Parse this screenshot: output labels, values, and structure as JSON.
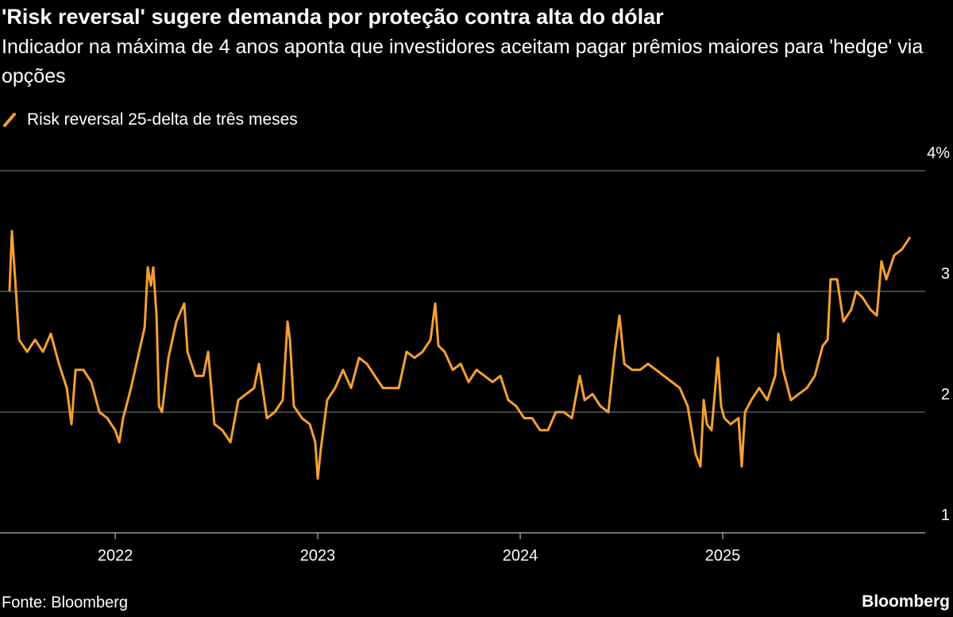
{
  "chart_data": {
    "type": "line",
    "title": "'Risk reversal' sugere demanda por proteção contra alta do dólar",
    "subtitle": "Indicador na máxima de 4 anos aponta que investidores aceitam pagar prêmios maiores para 'hedge' via opções",
    "source": "Fonte: Bloomberg",
    "brand": "Bloomberg",
    "xlim": [
      2021.431,
      2026.0
    ],
    "xticks": [
      2022,
      2023,
      2024,
      2025
    ],
    "ylim": [
      1,
      4
    ],
    "yticks": [
      1,
      2,
      3,
      {
        "value": 4,
        "label": "4%"
      }
    ],
    "grid": true,
    "x": [
      2021.478,
      2021.49,
      2021.506,
      2021.525,
      2021.565,
      2021.604,
      2021.643,
      2021.682,
      2021.722,
      2021.761,
      2021.784,
      2021.804,
      2021.843,
      2021.882,
      2021.922,
      2021.961,
      2022.0,
      2022.02,
      2022.039,
      2022.078,
      2022.118,
      2022.145,
      2022.161,
      2022.176,
      2022.188,
      2022.204,
      2022.216,
      2022.231,
      2022.263,
      2022.302,
      2022.341,
      2022.357,
      2022.396,
      2022.435,
      2022.459,
      2022.49,
      2022.529,
      2022.569,
      2022.608,
      2022.647,
      2022.686,
      2022.71,
      2022.749,
      2022.788,
      2022.827,
      2022.851,
      2022.863,
      2022.882,
      2022.922,
      2022.961,
      2022.988,
      2023.0,
      2023.016,
      2023.047,
      2023.086,
      2023.125,
      2023.165,
      2023.204,
      2023.243,
      2023.282,
      2023.322,
      2023.361,
      2023.4,
      2023.439,
      2023.478,
      2023.518,
      2023.557,
      2023.58,
      2023.596,
      2023.627,
      2023.667,
      2023.706,
      2023.745,
      2023.784,
      2023.824,
      2023.863,
      2023.902,
      2023.941,
      2023.98,
      2024.02,
      2024.059,
      2024.098,
      2024.137,
      2024.176,
      2024.216,
      2024.255,
      2024.294,
      2024.318,
      2024.357,
      2024.396,
      2024.435,
      2024.467,
      2024.49,
      2024.514,
      2024.553,
      2024.592,
      2024.631,
      2024.671,
      2024.71,
      2024.749,
      2024.788,
      2024.827,
      2024.867,
      2024.89,
      2024.906,
      2024.922,
      2024.945,
      2024.976,
      2024.992,
      2025.008,
      2025.039,
      2025.078,
      2025.094,
      2025.11,
      2025.141,
      2025.18,
      2025.22,
      2025.259,
      2025.275,
      2025.298,
      2025.337,
      2025.376,
      2025.416,
      2025.455,
      2025.494,
      2025.518,
      2025.533,
      2025.565,
      2025.596,
      2025.635,
      2025.659,
      2025.69,
      2025.729,
      2025.761,
      2025.784,
      2025.808,
      2025.847,
      2025.886,
      2025.925
    ],
    "series": [
      {
        "name": "Risk reversal 25-delta de três meses",
        "color": "#f5a033",
        "values": [
          3.0,
          3.5,
          3.1,
          2.6,
          2.5,
          2.6,
          2.5,
          2.65,
          2.4,
          2.2,
          1.9,
          2.35,
          2.35,
          2.25,
          2.0,
          1.95,
          1.85,
          1.75,
          1.95,
          2.2,
          2.5,
          2.7,
          3.2,
          3.05,
          3.2,
          2.8,
          2.05,
          2.0,
          2.45,
          2.75,
          2.9,
          2.5,
          2.3,
          2.3,
          2.5,
          1.9,
          1.85,
          1.75,
          2.1,
          2.15,
          2.2,
          2.4,
          1.95,
          2.0,
          2.1,
          2.75,
          2.6,
          2.05,
          1.95,
          1.9,
          1.75,
          1.45,
          1.7,
          2.1,
          2.2,
          2.35,
          2.2,
          2.45,
          2.4,
          2.3,
          2.2,
          2.2,
          2.2,
          2.5,
          2.45,
          2.5,
          2.6,
          2.9,
          2.55,
          2.5,
          2.35,
          2.4,
          2.25,
          2.35,
          2.3,
          2.25,
          2.3,
          2.1,
          2.05,
          1.95,
          1.95,
          1.85,
          1.85,
          2.0,
          2.0,
          1.95,
          2.3,
          2.1,
          2.15,
          2.05,
          2.0,
          2.5,
          2.8,
          2.4,
          2.35,
          2.35,
          2.4,
          2.35,
          2.3,
          2.25,
          2.2,
          2.05,
          1.65,
          1.55,
          2.1,
          1.9,
          1.85,
          2.45,
          2.05,
          1.95,
          1.9,
          1.95,
          1.55,
          2.0,
          2.1,
          2.2,
          2.1,
          2.3,
          2.65,
          2.35,
          2.1,
          2.15,
          2.2,
          2.3,
          2.55,
          2.6,
          3.1,
          3.1,
          2.75,
          2.85,
          3.0,
          2.95,
          2.85,
          2.8,
          3.25,
          3.1,
          3.3,
          3.35,
          3.45
        ]
      }
    ]
  }
}
